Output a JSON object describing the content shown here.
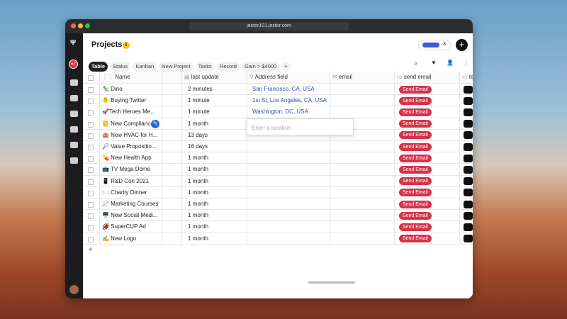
{
  "browser": {
    "url": "jestor101.jestor.com"
  },
  "sidebar": {
    "badge": "57"
  },
  "header": {
    "title": "Projects",
    "info": "i",
    "avatar_count": "3"
  },
  "tabs": [
    "Table",
    "Status",
    "Kanban",
    "New Project",
    "Tasks",
    "Record",
    "Gain > $4000",
    "+"
  ],
  "columns": [
    "Name",
    "last update",
    "Address field",
    "email",
    "send email",
    "te"
  ],
  "rows": [
    {
      "name": "🦎 Dino",
      "last_update": "2 minutes",
      "address": "San Francisco, CA, USA",
      "button": "Send Email"
    },
    {
      "name": "🐥 Buying Twitter",
      "last_update": "1 minute",
      "address": "1st St, Los Angeles, CA, USA",
      "button": "Send Email"
    },
    {
      "name": "🚀Tech Heroes Me...",
      "last_update": "1 minute",
      "address": "Washington, DC, USA",
      "button": "Send Email"
    },
    {
      "name": "📒 New Compliance",
      "last_update": "1 month",
      "button": "Send Email"
    },
    {
      "name": "🏨 New HVAC for H...",
      "last_update": "13 days",
      "button": "Send Email"
    },
    {
      "name": "🔎 Value Propositio...",
      "last_update": "16 days",
      "button": "Send Email"
    },
    {
      "name": "💊 New Health App",
      "last_update": "1 month",
      "button": "Send Email"
    },
    {
      "name": "📺 TV Mega Dome",
      "last_update": "1 month",
      "button": "Send Email"
    },
    {
      "name": "📱 R&D Con 2021",
      "last_update": "1 month",
      "button": "Send Email"
    },
    {
      "name": "🍽️ Charity Dinner",
      "last_update": "1 month",
      "button": "Send Email"
    },
    {
      "name": "📈 Marketing Courses",
      "last_update": "1 month",
      "button": "Send Email"
    },
    {
      "name": "🖥️ New Social Medi...",
      "last_update": "1 month",
      "button": "Send Email"
    },
    {
      "name": "🏈 SuperCUP Ad",
      "last_update": "1 month",
      "button": "Send Email"
    },
    {
      "name": "✍️ New Logo",
      "last_update": "1 month",
      "button": "Send Email"
    }
  ],
  "location_input": {
    "placeholder": "Enter a location"
  },
  "add_row": "+"
}
